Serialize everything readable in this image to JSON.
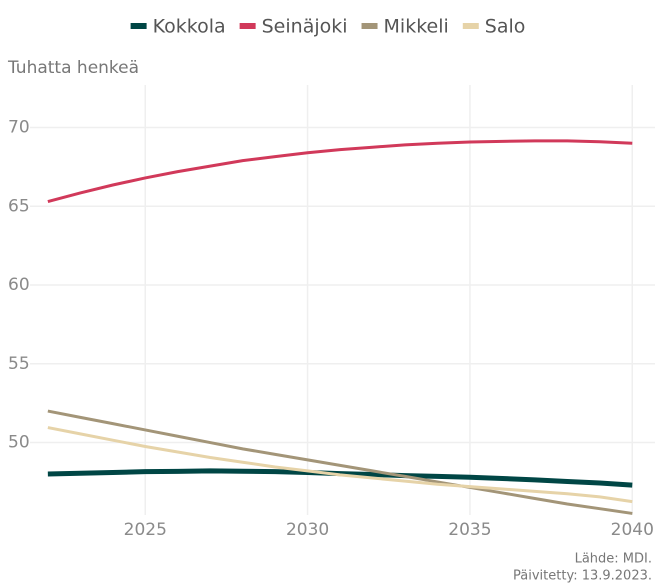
{
  "chart_data": {
    "type": "line",
    "y_axis_label": "Tuhatta henkeä",
    "caption": [
      "Lähde: MDI.",
      "Päivitetty: 13.9.2023."
    ],
    "x": [
      2022,
      2023,
      2024,
      2025,
      2026,
      2027,
      2028,
      2029,
      2030,
      2031,
      2032,
      2033,
      2034,
      2035,
      2036,
      2037,
      2038,
      2039,
      2040
    ],
    "series": [
      {
        "name": "Kokkola",
        "color": "#004645",
        "width": 5,
        "values": [
          48.0,
          48.05,
          48.1,
          48.15,
          48.17,
          48.2,
          48.18,
          48.15,
          48.1,
          48.03,
          47.97,
          47.9,
          47.85,
          47.8,
          47.72,
          47.63,
          47.53,
          47.43,
          47.3
        ]
      },
      {
        "name": "Seinäjoki",
        "color": "#d1395a",
        "width": 3,
        "values": [
          65.3,
          65.85,
          66.35,
          66.8,
          67.2,
          67.55,
          67.9,
          68.15,
          68.4,
          68.6,
          68.75,
          68.9,
          69.0,
          69.08,
          69.12,
          69.15,
          69.15,
          69.1,
          69.0
        ]
      },
      {
        "name": "Mikkeli",
        "color": "#a39578",
        "width": 3,
        "values": [
          52.0,
          51.6,
          51.2,
          50.8,
          50.4,
          50.0,
          49.6,
          49.25,
          48.9,
          48.55,
          48.2,
          47.85,
          47.5,
          47.15,
          46.8,
          46.45,
          46.1,
          45.8,
          45.5
        ]
      },
      {
        "name": "Salo",
        "color": "#e6d3a8",
        "width": 3,
        "values": [
          50.95,
          50.55,
          50.15,
          49.75,
          49.4,
          49.05,
          48.75,
          48.45,
          48.2,
          47.95,
          47.75,
          47.55,
          47.35,
          47.2,
          47.05,
          46.9,
          46.75,
          46.55,
          46.25
        ]
      }
    ],
    "xlim": [
      2021.45,
      2040.7
    ],
    "xticks": [
      2025,
      2030,
      2035,
      2040
    ],
    "ylim": [
      45.4,
      72.7
    ],
    "yticks": [
      50,
      55,
      60,
      65,
      70
    ],
    "grid": true,
    "legend": "top"
  }
}
